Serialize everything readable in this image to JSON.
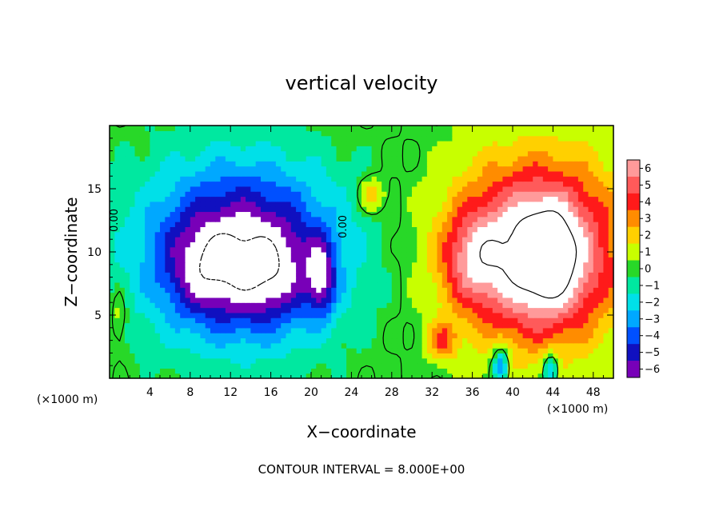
{
  "chart_data": {
    "type": "heatmap",
    "title": "vertical velocity",
    "xlabel": "X−coordinate",
    "ylabel": "Z−coordinate",
    "x_unit_left": "(×1000 m)",
    "x_unit_right": "(×1000 m)",
    "footer": "CONTOUR INTERVAL = 8.000E+00",
    "xlim": [
      0,
      50
    ],
    "ylim": [
      0,
      20
    ],
    "x_ticks": [
      4,
      8,
      12,
      16,
      20,
      24,
      28,
      32,
      36,
      40,
      44,
      48
    ],
    "x_tick_labels": [
      "4",
      "8",
      "12",
      "16",
      "20",
      "24",
      "28",
      "32",
      "36",
      "40",
      "44",
      "48"
    ],
    "y_ticks": [
      5,
      10,
      15
    ],
    "y_tick_labels": [
      "5",
      "10",
      "15"
    ],
    "contour_labels": [
      {
        "text": "0.00",
        "x": 0.8,
        "y": 12.5
      },
      {
        "text": "0.00",
        "x": 23.5,
        "y": 12.0
      }
    ],
    "colorbar": {
      "levels": [
        6,
        5,
        4,
        3,
        2,
        1,
        0,
        -1,
        -2,
        -3,
        -4,
        -5,
        -6
      ],
      "labels": [
        "6",
        "5",
        "4",
        "3",
        "2",
        "1",
        "0",
        "−1",
        "−2",
        "−3",
        "−4",
        "−5",
        "−6"
      ],
      "colors": [
        "#ff9a9a",
        "#ff5a5a",
        "#ff1a1a",
        "#ff8c00",
        "#ffd000",
        "#c8ff00",
        "#28d828",
        "#00e8a0",
        "#00e0e8",
        "#00a8ff",
        "#0050ff",
        "#1010c0",
        "#7800b8"
      ]
    },
    "saturated_color": "#ffffff",
    "features": [
      {
        "kind": "downdraft",
        "cx": 13.0,
        "cz": 10.0,
        "rx": 9.5,
        "rz": 6.8,
        "amp": -7.5
      },
      {
        "kind": "downdraft",
        "cx": 9.5,
        "cz": 8.5,
        "rx": 3.5,
        "rz": 3.5,
        "amp": -2.0
      },
      {
        "kind": "downdraft",
        "cx": 16.0,
        "cz": 8.0,
        "rx": 3.5,
        "rz": 3.5,
        "amp": -2.0
      },
      {
        "kind": "downdraft",
        "cx": 21.0,
        "cz": 8.0,
        "rx": 1.4,
        "rz": 3.0,
        "amp": -4.0
      },
      {
        "kind": "updraft",
        "cx": 42.5,
        "cz": 10.0,
        "rx": 8.0,
        "rz": 7.0,
        "amp": 8.5
      },
      {
        "kind": "updraft",
        "cx": 36.0,
        "cz": 9.5,
        "rx": 3.0,
        "rz": 3.5,
        "amp": 3.0
      },
      {
        "kind": "updraft",
        "cx": 43.5,
        "cz": 9.5,
        "rx": 2.8,
        "rz": 4.0,
        "amp": 3.0
      },
      {
        "kind": "updraft",
        "cx": 26.0,
        "cz": 14.5,
        "rx": 1.3,
        "rz": 1.3,
        "amp": 2.8
      },
      {
        "kind": "updraft",
        "cx": 33.0,
        "cz": 3.0,
        "rx": 1.5,
        "rz": 1.5,
        "amp": 3.0
      },
      {
        "kind": "downdraft",
        "cx": 38.8,
        "cz": 1.0,
        "rx": 0.8,
        "rz": 1.5,
        "amp": -4.5
      },
      {
        "kind": "downdraft",
        "cx": 43.8,
        "cz": 0.8,
        "rx": 0.8,
        "rz": 1.3,
        "amp": -3.5
      },
      {
        "kind": "updraft",
        "cx": 1.0,
        "cz": 5.0,
        "rx": 0.8,
        "rz": 2.5,
        "amp": 1.6
      }
    ]
  }
}
